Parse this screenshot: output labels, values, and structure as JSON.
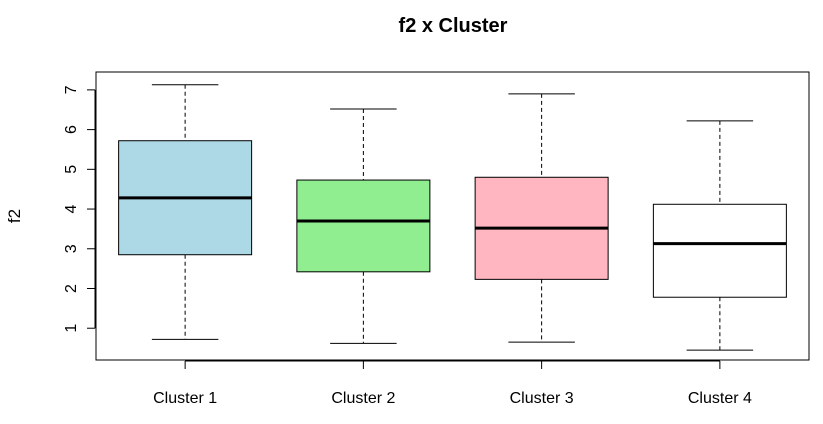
{
  "chart_data": {
    "type": "boxplot",
    "title": "f2 x Cluster",
    "xlabel": "",
    "ylabel": "f2",
    "ylim": [
      0.2,
      7.45
    ],
    "yticks": [
      1,
      2,
      3,
      4,
      5,
      6,
      7
    ],
    "grid": false,
    "categories": [
      "Cluster 1",
      "Cluster 2",
      "Cluster 3",
      "Cluster 4"
    ],
    "boxes": [
      {
        "category": "Cluster 1",
        "min": 0.72,
        "q1": 2.85,
        "median": 4.28,
        "q3": 5.72,
        "max": 7.13,
        "color": "#add8e6"
      },
      {
        "category": "Cluster 2",
        "min": 0.62,
        "q1": 2.42,
        "median": 3.7,
        "q3": 4.73,
        "max": 6.52,
        "color": "#90ee90"
      },
      {
        "category": "Cluster 3",
        "min": 0.65,
        "q1": 2.23,
        "median": 3.52,
        "q3": 4.8,
        "max": 6.9,
        "color": "#ffb6c1"
      },
      {
        "category": "Cluster 4",
        "min": 0.45,
        "q1": 1.78,
        "median": 3.13,
        "q3": 4.12,
        "max": 6.22,
        "color": "#ffffff"
      }
    ]
  }
}
